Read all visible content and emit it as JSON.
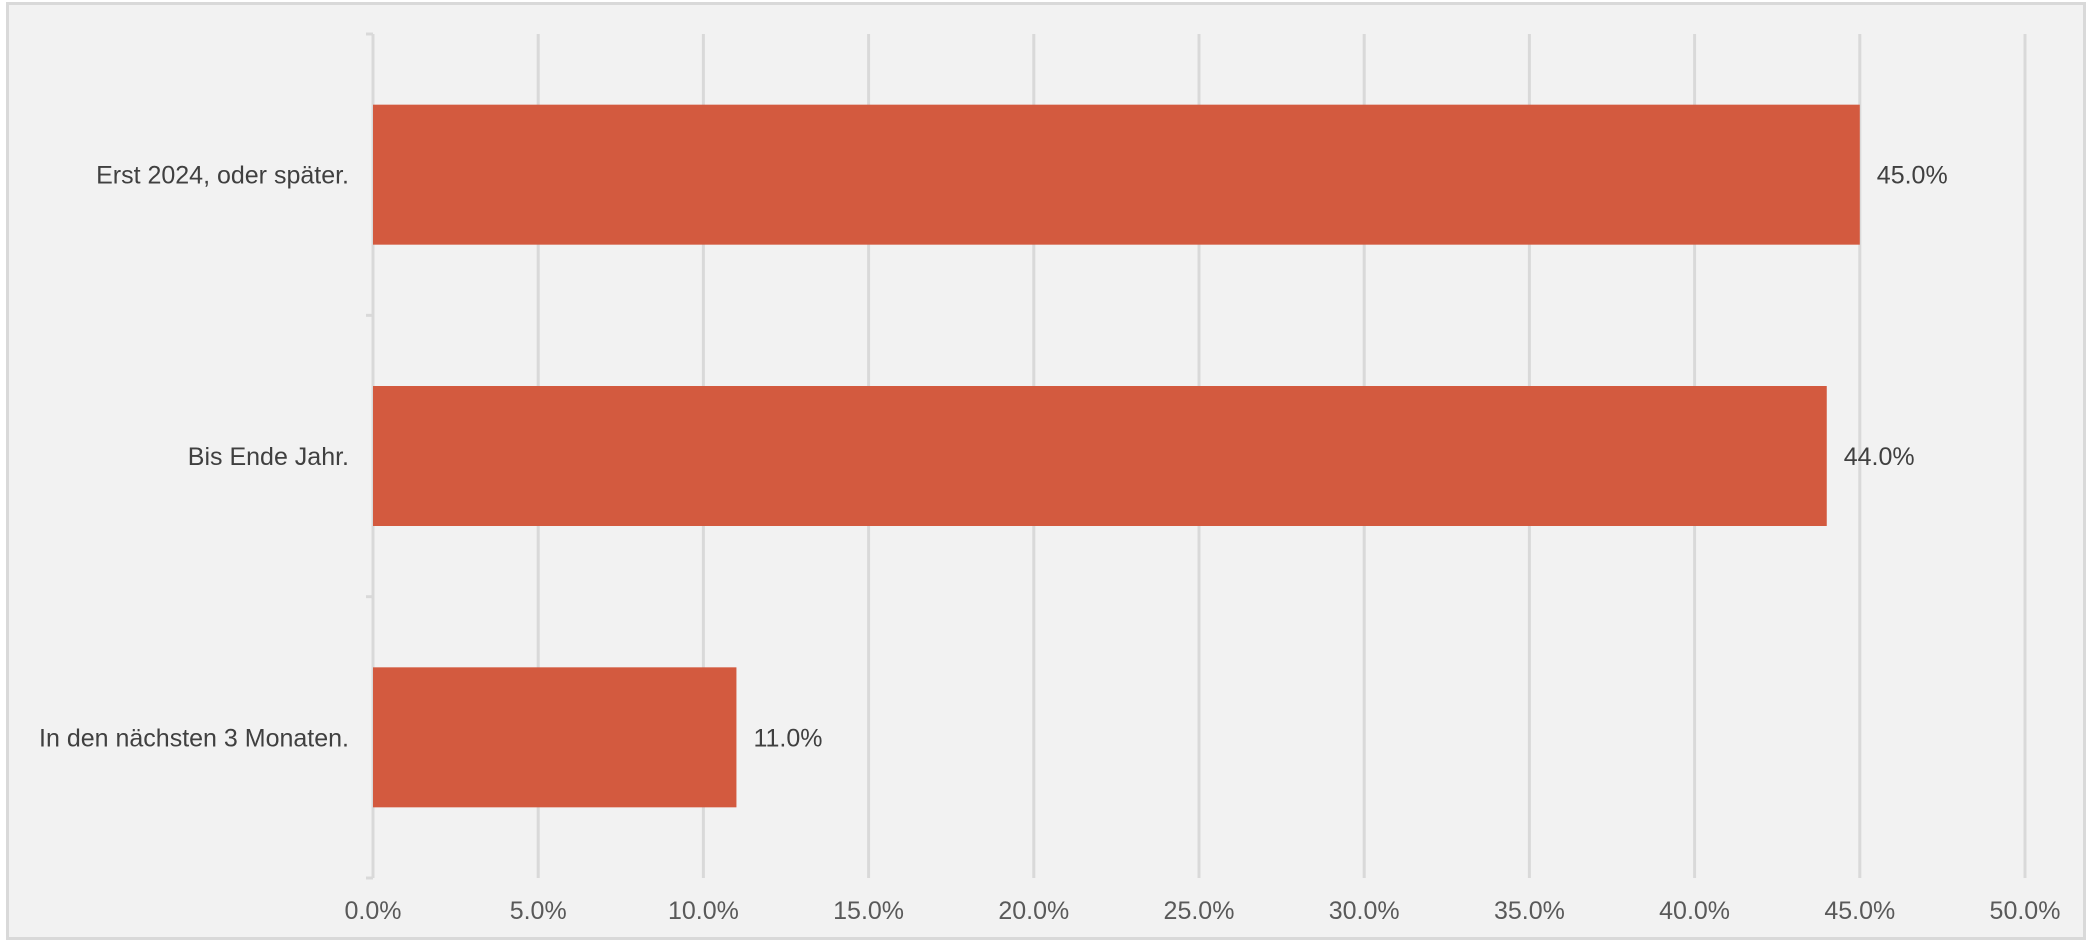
{
  "chart_data": {
    "type": "bar",
    "orientation": "horizontal",
    "categories": [
      "Erst 2024, oder später.",
      "Bis Ende Jahr.",
      "In den nächsten 3 Monaten."
    ],
    "values": [
      45.0,
      44.0,
      11.0
    ],
    "data_labels": [
      "45.0%",
      "44.0%",
      "11.0%"
    ],
    "x_ticks": [
      "0.0%",
      "5.0%",
      "10.0%",
      "15.0%",
      "20.0%",
      "25.0%",
      "30.0%",
      "35.0%",
      "40.0%",
      "45.0%",
      "50.0%"
    ],
    "xlim": [
      0,
      50
    ],
    "grid": true,
    "title": "",
    "xlabel": "",
    "ylabel": "",
    "bar_color": "#d35a3f",
    "gridline_color": "#d9d9d9",
    "background_color": "#f2f2f2"
  }
}
